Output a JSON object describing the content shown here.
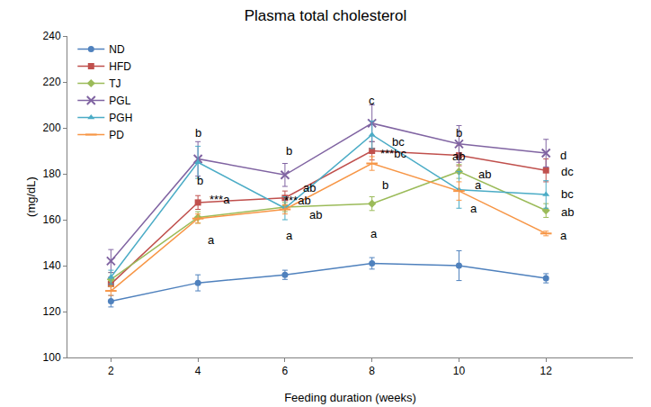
{
  "chart_data": {
    "type": "line",
    "title": "Plasma total cholesterol",
    "x_label": "Feeding duration (weeks)",
    "y_label": "(mg/dL)",
    "x": [
      2,
      4,
      6,
      8,
      10,
      12
    ],
    "xlim": [
      1,
      14
    ],
    "xticks": [
      2,
      4,
      6,
      8,
      10,
      12
    ],
    "ylim": [
      100,
      240
    ],
    "yticks": [
      100,
      120,
      140,
      160,
      180,
      200,
      220,
      240
    ],
    "grid": false,
    "legend": "top-left",
    "series": [
      {
        "name": "ND",
        "color": "#4F81BD",
        "marker": "circle",
        "values": [
          124.5,
          132.5,
          136,
          141,
          140,
          134.5
        ],
        "errors": [
          2.5,
          3.5,
          2,
          2.5,
          6.5,
          2
        ]
      },
      {
        "name": "HFD",
        "color": "#C0504D",
        "marker": "square",
        "values": [
          132,
          167.5,
          169.5,
          190,
          188,
          181.5
        ],
        "errors": [
          3,
          3,
          3,
          4,
          4.5,
          5
        ]
      },
      {
        "name": "TJ",
        "color": "#9BBB59",
        "marker": "diamond",
        "values": [
          134,
          161,
          165.5,
          167,
          181,
          164
        ],
        "errors": [
          3,
          2.5,
          2,
          3,
          3,
          3
        ]
      },
      {
        "name": "PGL",
        "color": "#8064A2",
        "marker": "x",
        "values": [
          142,
          186.5,
          179.5,
          202,
          193,
          189
        ],
        "errors": [
          5,
          7.5,
          5,
          8,
          8,
          6
        ]
      },
      {
        "name": "PGH",
        "color": "#4BACC6",
        "marker": "triangle",
        "values": [
          135,
          185,
          165,
          197,
          173,
          171
        ],
        "errors": [
          3,
          7,
          5,
          6,
          8,
          6
        ]
      },
      {
        "name": "PD",
        "color": "#F79646",
        "marker": "dash",
        "values": [
          129,
          160.5,
          164.5,
          184.5,
          172.5,
          154
        ],
        "errors": [
          2,
          2,
          2,
          3,
          4,
          1
        ]
      }
    ],
    "annotations": [
      {
        "x": 4,
        "y": 198,
        "text": "b"
      },
      {
        "x": 4.05,
        "y": 177,
        "text": "b"
      },
      {
        "x": 4.5,
        "y": 169,
        "text": "***a"
      },
      {
        "x": 4.3,
        "y": 151,
        "text": "a"
      },
      {
        "x": 6.1,
        "y": 190,
        "text": "b"
      },
      {
        "x": 6.55,
        "y": 174,
        "text": "ab"
      },
      {
        "x": 6.3,
        "y": 168.5,
        "text": "***ab"
      },
      {
        "x": 6.7,
        "y": 162,
        "text": "ab"
      },
      {
        "x": 6.1,
        "y": 153,
        "text": "a"
      },
      {
        "x": 8,
        "y": 212,
        "text": "c"
      },
      {
        "x": 8.6,
        "y": 194,
        "text": "bc"
      },
      {
        "x": 8.5,
        "y": 189,
        "text": "***bc"
      },
      {
        "x": 8.3,
        "y": 175,
        "text": "b"
      },
      {
        "x": 8.05,
        "y": 154,
        "text": "a"
      },
      {
        "x": 10,
        "y": 198,
        "text": "b"
      },
      {
        "x": 10,
        "y": 187.5,
        "text": "ab"
      },
      {
        "x": 10.6,
        "y": 180,
        "text": "ab"
      },
      {
        "x": 10.45,
        "y": 175,
        "text": "a"
      },
      {
        "x": 10.35,
        "y": 165,
        "text": "a"
      },
      {
        "x": 12.4,
        "y": 188,
        "text": "d"
      },
      {
        "x": 12.5,
        "y": 181,
        "text": "dc"
      },
      {
        "x": 12.5,
        "y": 171,
        "text": "bc"
      },
      {
        "x": 12.5,
        "y": 163.5,
        "text": "ab"
      },
      {
        "x": 12.4,
        "y": 153,
        "text": "a"
      }
    ]
  }
}
